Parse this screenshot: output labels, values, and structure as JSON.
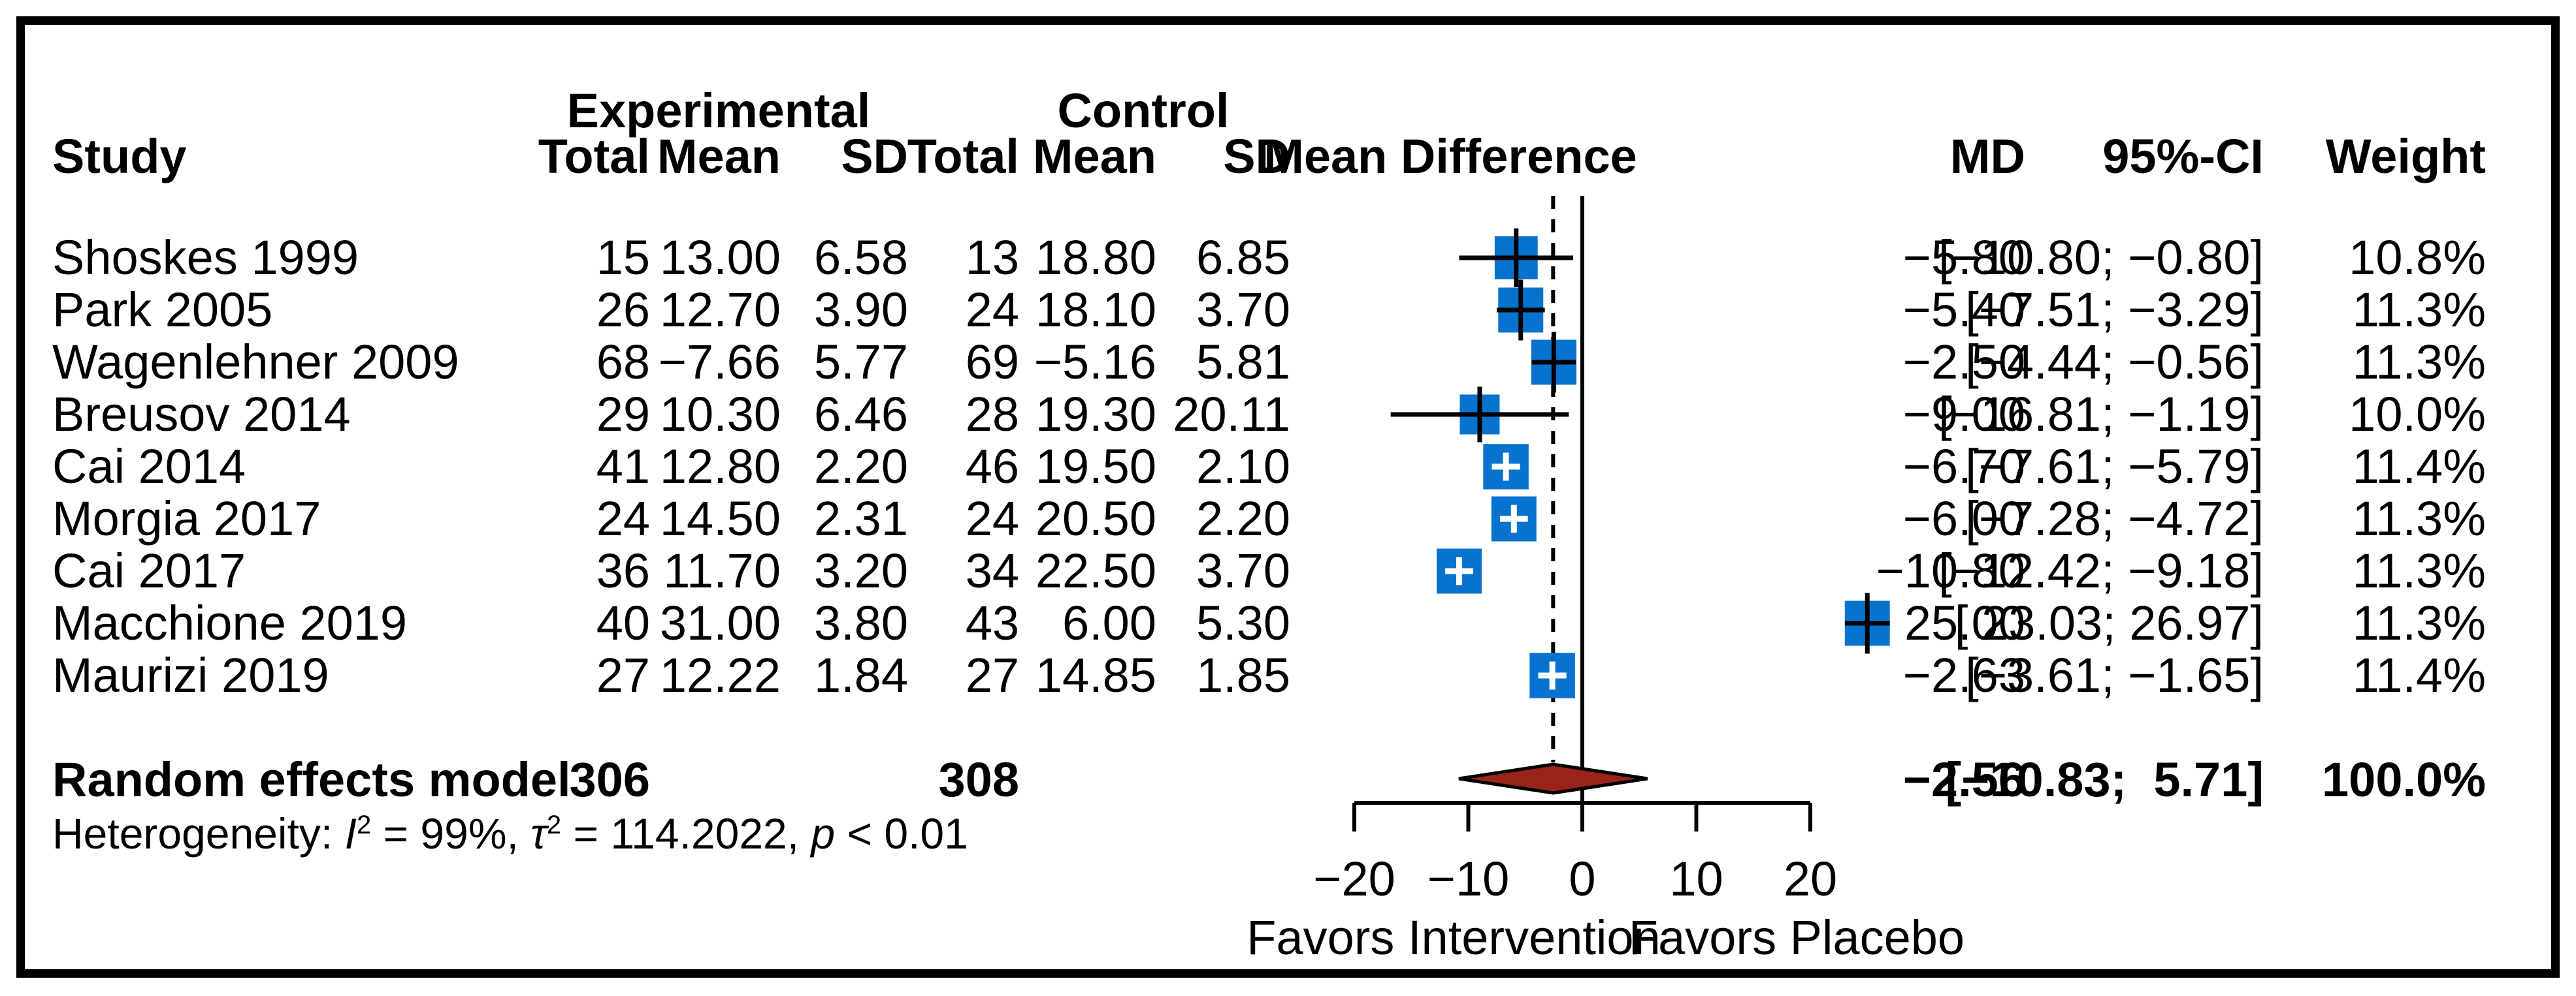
{
  "header": {
    "study": "Study",
    "group_experimental": "Experimental",
    "group_control": "Control",
    "col_total": "Total",
    "col_mean": "Mean",
    "col_sd": "SD",
    "plot_title": "Mean Difference",
    "col_md": "MD",
    "col_ci": "95%-CI",
    "col_weight": "Weight"
  },
  "studies": [
    {
      "name": "Shoskes 1999",
      "exp_total": "15",
      "exp_mean": "13.00",
      "exp_sd": "6.58",
      "ctl_total": "13",
      "ctl_mean": "18.80",
      "ctl_sd": "6.85",
      "md": "−5.80",
      "ci": "[−10.80; −0.80]",
      "weight": "10.8%"
    },
    {
      "name": "Park 2005",
      "exp_total": "26",
      "exp_mean": "12.70",
      "exp_sd": "3.90",
      "ctl_total": "24",
      "ctl_mean": "18.10",
      "ctl_sd": "3.70",
      "md": "−5.40",
      "ci": "[−7.51; −3.29]",
      "weight": "11.3%"
    },
    {
      "name": "Wagenlehner 2009",
      "exp_total": "68",
      "exp_mean": "−7.66",
      "exp_sd": "5.77",
      "ctl_total": "69",
      "ctl_mean": "−5.16",
      "ctl_sd": "5.81",
      "md": "−2.50",
      "ci": "[−4.44; −0.56]",
      "weight": "11.3%"
    },
    {
      "name": "Breusov 2014",
      "exp_total": "29",
      "exp_mean": "10.30",
      "exp_sd": "6.46",
      "ctl_total": "28",
      "ctl_mean": "19.30",
      "ctl_sd": "20.11",
      "md": "−9.00",
      "ci": "[−16.81; −1.19]",
      "weight": "10.0%"
    },
    {
      "name": "Cai 2014",
      "exp_total": "41",
      "exp_mean": "12.80",
      "exp_sd": "2.20",
      "ctl_total": "46",
      "ctl_mean": "19.50",
      "ctl_sd": "2.10",
      "md": "−6.70",
      "ci": "[−7.61; −5.79]",
      "weight": "11.4%"
    },
    {
      "name": "Morgia 2017",
      "exp_total": "24",
      "exp_mean": "14.50",
      "exp_sd": "2.31",
      "ctl_total": "24",
      "ctl_mean": "20.50",
      "ctl_sd": "2.20",
      "md": "−6.00",
      "ci": "[−7.28; −4.72]",
      "weight": "11.3%"
    },
    {
      "name": "Cai 2017",
      "exp_total": "36",
      "exp_mean": "11.70",
      "exp_sd": "3.20",
      "ctl_total": "34",
      "ctl_mean": "22.50",
      "ctl_sd": "3.70",
      "md": "−10.80",
      "ci": "[−12.42; −9.18]",
      "weight": "11.3%"
    },
    {
      "name": "Macchione 2019",
      "exp_total": "40",
      "exp_mean": "31.00",
      "exp_sd": "3.80",
      "ctl_total": "43",
      "ctl_mean": "6.00",
      "ctl_sd": "5.30",
      "md": "25.00",
      "ci": "[ 23.03; 26.97]",
      "weight": "11.3%"
    },
    {
      "name": "Maurizi 2019",
      "exp_total": "27",
      "exp_mean": "12.22",
      "exp_sd": "1.84",
      "ctl_total": "27",
      "ctl_mean": "14.85",
      "ctl_sd": "1.85",
      "md": "−2.63",
      "ci": "[−3.61; −1.65]",
      "weight": "11.4%"
    }
  ],
  "pooled": {
    "label": "Random effects model",
    "exp_total": "306",
    "ctl_total": "308",
    "md": "−2.56",
    "ci": "[−10.83;  5.71]",
    "weight": "100.0%"
  },
  "heterogeneity": [
    {
      "t": "Heterogeneity: "
    },
    {
      "t": "I",
      "i": true
    },
    {
      "t": "2",
      "sup": true
    },
    {
      "t": " = 99%, "
    },
    {
      "t": "τ",
      "i": true
    },
    {
      "t": "2",
      "sup": true
    },
    {
      "t": " = 114.2022, "
    },
    {
      "t": "p",
      "i": true
    },
    {
      "t": " < 0.01"
    }
  ],
  "axis": {
    "tick_labels": [
      "−20",
      "−10",
      "0",
      "10",
      "20"
    ],
    "favors_left": "Favors Intervention",
    "favors_right": "Favors Placebo"
  },
  "colors": {
    "square_blue": "#0773CE",
    "diamond_red": "#992319",
    "line_black": "#000000"
  },
  "chart_data": {
    "type": "forest",
    "title": "Mean Difference",
    "xlim": [
      -20,
      20
    ],
    "x_ticks": [
      -20,
      -10,
      0,
      10,
      20
    ],
    "zero_line": 0,
    "pooled_dashed_line": -2.56,
    "studies": [
      {
        "name": "Shoskes 1999",
        "md": -5.8,
        "ci_low": -10.8,
        "ci_high": -0.8,
        "weight_pct": 10.8
      },
      {
        "name": "Park 2005",
        "md": -5.4,
        "ci_low": -7.51,
        "ci_high": -3.29,
        "weight_pct": 11.3
      },
      {
        "name": "Wagenlehner 2009",
        "md": -2.5,
        "ci_low": -4.44,
        "ci_high": -0.56,
        "weight_pct": 11.3
      },
      {
        "name": "Breusov 2014",
        "md": -9.0,
        "ci_low": -16.81,
        "ci_high": -1.19,
        "weight_pct": 10.0
      },
      {
        "name": "Cai 2014",
        "md": -6.7,
        "ci_low": -7.61,
        "ci_high": -5.79,
        "weight_pct": 11.4
      },
      {
        "name": "Morgia 2017",
        "md": -6.0,
        "ci_low": -7.28,
        "ci_high": -4.72,
        "weight_pct": 11.3
      },
      {
        "name": "Cai 2017",
        "md": -10.8,
        "ci_low": -12.42,
        "ci_high": -9.18,
        "weight_pct": 11.3
      },
      {
        "name": "Macchione 2019",
        "md": 25.0,
        "ci_low": 23.03,
        "ci_high": 26.97,
        "weight_pct": 11.3
      },
      {
        "name": "Maurizi 2019",
        "md": -2.63,
        "ci_low": -3.61,
        "ci_high": -1.65,
        "weight_pct": 11.4
      }
    ],
    "pooled": {
      "md": -2.56,
      "ci_low": -10.83,
      "ci_high": 5.71,
      "weight_pct": 100.0
    },
    "heterogeneity": {
      "I2_pct": 99,
      "tau2": 114.2022,
      "p": "< 0.01"
    },
    "x_axis_annotation_left": "Favors Intervention",
    "x_axis_annotation_right": "Favors Placebo"
  }
}
